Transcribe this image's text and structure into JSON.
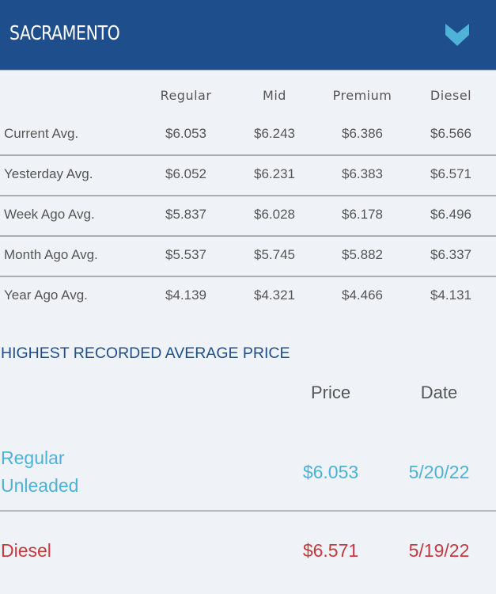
{
  "header": {
    "title": "SACRAMENTO",
    "toggle_icon": "chevron-down-icon",
    "bg_color": "#1f4e8c",
    "icon_color": "#4fb3d9"
  },
  "table": {
    "columns": [
      "Regular",
      "Mid",
      "Premium",
      "Diesel"
    ],
    "rows": [
      {
        "label": "Current Avg.",
        "values": [
          "$6.053",
          "$6.243",
          "$6.386",
          "$6.566"
        ]
      },
      {
        "label": "Yesterday Avg.",
        "values": [
          "$6.052",
          "$6.231",
          "$6.383",
          "$6.571"
        ]
      },
      {
        "label": "Week Ago Avg.",
        "values": [
          "$5.837",
          "$6.028",
          "$6.178",
          "$6.496"
        ]
      },
      {
        "label": "Month Ago Avg.",
        "values": [
          "$5.537",
          "$5.745",
          "$5.882",
          "$6.337"
        ]
      },
      {
        "label": "Year Ago Avg.",
        "values": [
          "$4.139",
          "$4.321",
          "$4.466",
          "$4.131"
        ]
      }
    ]
  },
  "highest": {
    "title": "HIGHEST RECORDED AVERAGE PRICE",
    "columns": [
      "Price",
      "Date"
    ],
    "rows": [
      {
        "label_line1": "Regular",
        "label_line2": "Unleaded",
        "price": "$6.053",
        "date": "5/20/22",
        "color": "#4ab3d6"
      },
      {
        "label_line1": "Diesel",
        "price": "$6.571",
        "date": "5/19/22",
        "color": "#c8393f"
      }
    ]
  }
}
